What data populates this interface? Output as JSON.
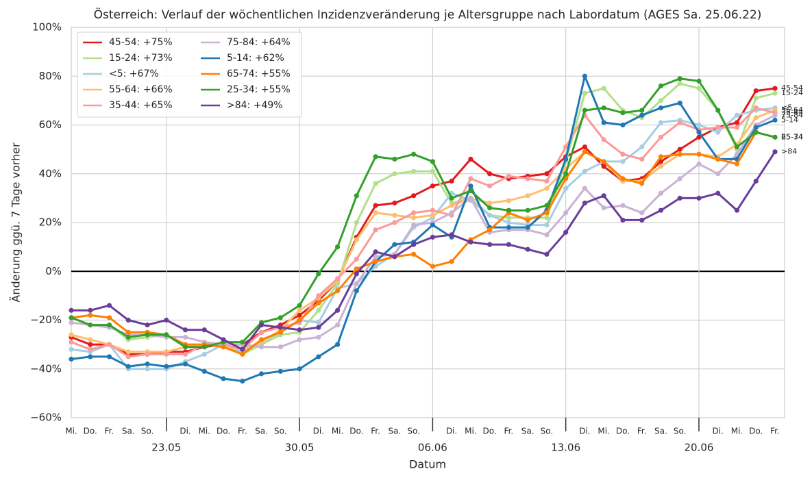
{
  "chart_data": {
    "type": "line",
    "title": "Österreich: Verlauf der wöchentlichen Inzidenzveränderung je Altersgruppe nach Labordatum (AGES Sa. 25.06.22)",
    "x_label": "Datum",
    "y_label": "Änderung ggü. 7 Tage vorher",
    "categories": [
      "Mi.",
      "Do.",
      "Fr.",
      "Sa.",
      "So.",
      null,
      "Di.",
      "Mi.",
      "Do.",
      "Fr.",
      "Sa.",
      "So.",
      null,
      "Di.",
      "Mi.",
      "Do.",
      "Fr.",
      "Sa.",
      "So.",
      null,
      "Di.",
      "Mi.",
      "Do.",
      "Fr.",
      "Sa.",
      "So.",
      null,
      "Di.",
      "Mi.",
      "Do.",
      "Fr.",
      "Sa.",
      "So.",
      null,
      "Di.",
      "Mi.",
      "Do.",
      "Fr."
    ],
    "date_labels": [
      null,
      null,
      null,
      null,
      null,
      "23.05",
      null,
      null,
      null,
      null,
      null,
      null,
      "30.05",
      null,
      null,
      null,
      null,
      null,
      null,
      "06.06",
      null,
      null,
      null,
      null,
      null,
      null,
      "13.06",
      null,
      null,
      null,
      null,
      null,
      null,
      "20.06",
      null,
      null,
      null,
      null
    ],
    "ylim": [
      -60,
      100
    ],
    "yticks": [
      {
        "value": -60,
        "label": "−60%"
      },
      {
        "value": -40,
        "label": "−40%"
      },
      {
        "value": -20,
        "label": "−20%"
      },
      {
        "value": 0,
        "label": "0%"
      },
      {
        "value": 20,
        "label": "20%"
      },
      {
        "value": 40,
        "label": "40%"
      },
      {
        "value": 60,
        "label": "60%"
      },
      {
        "value": 80,
        "label": "80%"
      },
      {
        "value": 100,
        "label": "100%"
      }
    ],
    "grid": true,
    "legend": "upper left",
    "series": [
      {
        "name": "45-54: +75%",
        "end_label": "45-54",
        "color": "#e31a1c",
        "values": [
          -27,
          -30,
          -30,
          -34,
          -34,
          -33,
          -33,
          -31,
          -30,
          -30,
          -25,
          -22,
          -18,
          -12,
          -4,
          14,
          27,
          28,
          31,
          35,
          37,
          46,
          40,
          38,
          39,
          40,
          47,
          51,
          43,
          37,
          38,
          45,
          50,
          55,
          59,
          61,
          74,
          75
        ]
      },
      {
        "name": "15-24: +73%",
        "end_label": "15-24",
        "color": "#b2df8a",
        "values": [
          -19,
          -22,
          -22,
          -28,
          -27,
          -26,
          -31,
          -30,
          -30,
          -34,
          -30,
          -26,
          -25,
          -16,
          -5,
          20,
          36,
          40,
          41,
          41,
          28,
          30,
          23,
          22,
          22,
          22,
          45,
          73,
          75,
          66,
          63,
          70,
          77,
          75,
          66,
          50,
          71,
          73
        ]
      },
      {
        "name": "<5: +67%",
        "end_label": "<5",
        "color": "#a6cee3",
        "values": [
          -32,
          -33,
          -30,
          -40,
          -40,
          -40,
          -37,
          -34,
          -30,
          -33,
          -29,
          -25,
          -20,
          -21,
          -7,
          -5,
          2,
          7,
          18,
          22,
          32,
          29,
          23,
          20,
          19,
          19,
          34,
          41,
          45,
          45,
          51,
          61,
          62,
          60,
          57,
          64,
          66,
          67
        ]
      },
      {
        "name": "55-64: +66%",
        "end_label": "55-64",
        "color": "#fdbf6f",
        "values": [
          -26,
          -28,
          -30,
          -33,
          -33,
          -33,
          -31,
          -30,
          -31,
          -32,
          -29,
          -24,
          -16,
          -11,
          -4,
          13,
          24,
          23,
          22,
          23,
          27,
          30,
          28,
          29,
          31,
          34,
          42,
          49,
          45,
          37,
          37,
          43,
          48,
          48,
          47,
          52,
          63,
          66
        ]
      },
      {
        "name": "35-44: +65%",
        "end_label": "35-44",
        "color": "#fb9a99",
        "values": [
          -29,
          -32,
          -30,
          -35,
          -34,
          -34,
          -34,
          -30,
          -30,
          -32,
          -25,
          -23,
          -21,
          -10,
          -3,
          5,
          17,
          20,
          24,
          25,
          23,
          38,
          35,
          39,
          38,
          37,
          51,
          64,
          54,
          48,
          46,
          55,
          61,
          58,
          59,
          59,
          67,
          65
        ]
      },
      {
        "name": "75-84: +64%",
        "end_label": "75-84",
        "color": "#cab2d6",
        "values": [
          -21,
          -22,
          -23,
          -26,
          -26,
          -27,
          -27,
          -29,
          -30,
          -30,
          -31,
          -31,
          -28,
          -27,
          -22,
          -5,
          6,
          7,
          19,
          20,
          24,
          30,
          16,
          17,
          17,
          15,
          24,
          34,
          26,
          27,
          24,
          32,
          38,
          44,
          40,
          48,
          60,
          64
        ]
      },
      {
        "name": "5-14: +62%",
        "end_label": "5-14",
        "color": "#1f78b4",
        "values": [
          -36,
          -35,
          -35,
          -39,
          -38,
          -39,
          -38,
          -41,
          -44,
          -45,
          -42,
          -41,
          -40,
          -35,
          -30,
          -8,
          4,
          11,
          12,
          19,
          14,
          35,
          18,
          18,
          18,
          25,
          46,
          80,
          61,
          60,
          64,
          67,
          69,
          57,
          46,
          46,
          59,
          62
        ]
      },
      {
        "name": "65-74: +55%",
        "end_label": "65-74",
        "color": "#ff7f00",
        "values": [
          -19,
          -18,
          -19,
          -25,
          -25,
          -26,
          -30,
          -30,
          -31,
          -34,
          -28,
          -25,
          -20,
          -13,
          -8,
          1,
          4,
          6,
          7,
          2,
          4,
          13,
          17,
          24,
          21,
          24,
          38,
          49,
          45,
          38,
          36,
          47,
          48,
          48,
          46,
          44,
          57,
          55
        ]
      },
      {
        "name": "25-34: +55%",
        "end_label": "25-34",
        "color": "#33a02c",
        "values": [
          -19,
          -22,
          -22,
          -27,
          -26,
          -26,
          -31,
          -31,
          -29,
          -29,
          -21,
          -19,
          -14,
          -1,
          10,
          31,
          47,
          46,
          48,
          45,
          30,
          33,
          26,
          25,
          25,
          27,
          40,
          66,
          67,
          65,
          66,
          76,
          79,
          78,
          66,
          51,
          57,
          55
        ]
      },
      {
        "name": ">84: +49%",
        "end_label": ">84",
        "color": "#6a3d9a",
        "values": [
          -16,
          -16,
          -14,
          -20,
          -22,
          -20,
          -24,
          -24,
          -28,
          -32,
          -22,
          -23,
          -24,
          -23,
          -16,
          -1,
          8,
          6,
          11,
          14,
          15,
          12,
          11,
          11,
          9,
          7,
          16,
          28,
          31,
          21,
          21,
          25,
          30,
          30,
          32,
          25,
          37,
          49
        ]
      }
    ]
  }
}
